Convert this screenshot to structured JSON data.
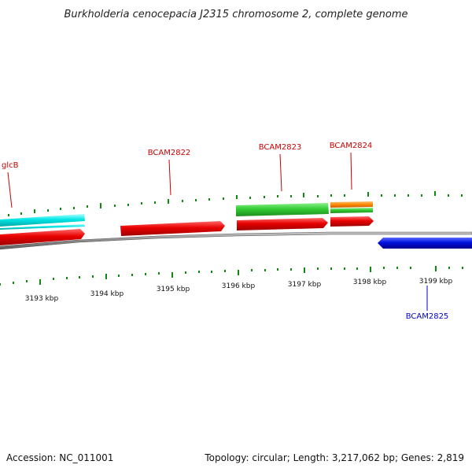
{
  "title": "Burkholderia cenocepacia J2315 chromosome 2, complete genome",
  "footer": {
    "accession": "Accession: NC_011001",
    "summary": "Topology: circular; Length: 3,217,062 bp; Genes: 2,819"
  },
  "kbp_labels": [
    "3193 kbp",
    "3194 kbp",
    "3195 kbp",
    "3196 kbp",
    "3197 kbp",
    "3198 kbp",
    "3199 kbp"
  ],
  "gene_labels": [
    "glcB",
    "BCAM2822",
    "BCAM2823",
    "BCAM2824",
    "BCAM2825"
  ],
  "colors": {
    "red": "#d10000",
    "green": "#33bb33",
    "cyan": "#00dddd",
    "orange": "#ff8800",
    "blue": "#0000cc",
    "backbone": "#808080",
    "tick": "#118811",
    "label_red": "#cc0000",
    "label_blue": "#0000cc"
  }
}
